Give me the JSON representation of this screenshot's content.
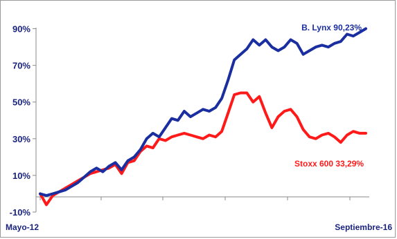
{
  "chart_data": {
    "type": "line",
    "title": "",
    "xlabel": "",
    "ylabel": "",
    "ylim": [
      -10,
      100
    ],
    "y_ticks": [
      -10,
      10,
      30,
      50,
      70,
      90
    ],
    "y_tick_labels": [
      "-10%",
      "10%",
      "30%",
      "50%",
      "70%",
      "90%"
    ],
    "x_start_label": "Mayo-12",
    "x_end_label": "Septiembre-16",
    "x": [
      0,
      1,
      2,
      3,
      4,
      5,
      6,
      7,
      8,
      9,
      10,
      11,
      12,
      13,
      14,
      15,
      16,
      17,
      18,
      19,
      20,
      21,
      22,
      23,
      24,
      25,
      26,
      27,
      28,
      29,
      30,
      31,
      32,
      33,
      34,
      35,
      36,
      37,
      38,
      39,
      40,
      41,
      42,
      43,
      44,
      45,
      46,
      47,
      48,
      49,
      50,
      51,
      52
    ],
    "series": [
      {
        "name": "B. Lynx",
        "label": "B. Lynx 90,23%",
        "color": "#1a2ea0",
        "values": [
          0,
          -1,
          0,
          1,
          2,
          4,
          6,
          9,
          12,
          14,
          12,
          15,
          17,
          13,
          18,
          20,
          24,
          30,
          33,
          31,
          36,
          41,
          40,
          45,
          42,
          44,
          46,
          45,
          47,
          52,
          62,
          73,
          76,
          79,
          84,
          81,
          84,
          80,
          78,
          80,
          84,
          82,
          76,
          78,
          80,
          81,
          80,
          82,
          83,
          87,
          86,
          88,
          90
        ]
      },
      {
        "name": "Stoxx 600",
        "label": "Stoxx 600 33,29%",
        "color": "#ff1a1a",
        "values": [
          0,
          -6,
          -1,
          1,
          3,
          5,
          7,
          9,
          11,
          12,
          13,
          14,
          16,
          11,
          17,
          18,
          23,
          26,
          25,
          30,
          29,
          31,
          32,
          33,
          32,
          31,
          30,
          32,
          31,
          34,
          44,
          54,
          55,
          55,
          50,
          53,
          44,
          36,
          42,
          45,
          46,
          42,
          35,
          31,
          30,
          32,
          33,
          31,
          28,
          32,
          34,
          33,
          33
        ]
      }
    ]
  }
}
